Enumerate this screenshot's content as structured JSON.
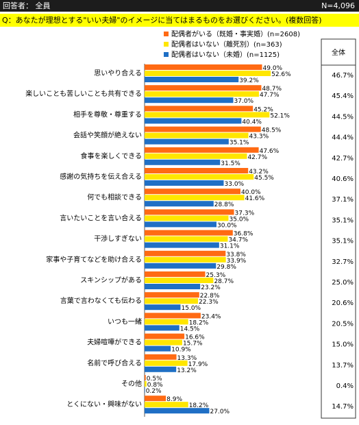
{
  "header": {
    "respondent": "回答者： 全員",
    "n_total": "N=4,096"
  },
  "question": "Q：あなたが理想とする\"いい夫婦\"のイメージに当てはまるものをお選びください。(複数回答)",
  "total_header": "全体",
  "colors": {
    "married": "#ff6a13",
    "divorced": "#ffe600",
    "unmarried": "#1f6fc5",
    "header_bg": "#1c1c1c",
    "question_bg": "#ffff00"
  },
  "chart_data": {
    "type": "bar",
    "orientation": "horizontal",
    "categories": [
      "思いやり合える",
      "楽しいことも苦しいことも共有できる",
      "相手を尊敬・尊重する",
      "会話や笑顔が絶えない",
      "食事を楽しくできる",
      "感謝の気持ちを伝え合える",
      "何でも相談できる",
      "言いたいことを言い合える",
      "干渉しすぎない",
      "家事や子育てなどを助け合える",
      "スキンシップがある",
      "言葉で言わなくても伝わる",
      "いつも一緒",
      "夫婦喧嘩ができる",
      "名前で呼び合える",
      "その他",
      "とくにない・興味がない"
    ],
    "series": [
      {
        "name": "配偶者がいる（既婚・事実婚）(n=2608)",
        "values": [
          49.0,
          48.7,
          45.2,
          48.5,
          47.6,
          43.2,
          40.0,
          37.3,
          36.8,
          33.8,
          25.3,
          22.8,
          23.4,
          16.6,
          13.3,
          0.5,
          8.9
        ]
      },
      {
        "name": "配偶者はいない（離死別）(n=363)",
        "values": [
          52.6,
          47.7,
          52.1,
          43.3,
          42.7,
          45.5,
          41.6,
          35.0,
          34.7,
          33.9,
          28.7,
          22.3,
          18.2,
          15.7,
          17.9,
          0.8,
          18.2
        ]
      },
      {
        "name": "配偶者はいない（未婚）(n=1125)",
        "values": [
          39.2,
          37.0,
          40.4,
          35.1,
          31.5,
          33.0,
          28.8,
          30.0,
          31.1,
          29.8,
          23.2,
          15.0,
          14.5,
          10.9,
          13.2,
          0.2,
          27.0
        ]
      }
    ],
    "total": [
      "46.7%",
      "45.4%",
      "44.5%",
      "44.4%",
      "42.7%",
      "40.6%",
      "37.1%",
      "35.1%",
      "35.1%",
      "32.7%",
      "25.0%",
      "20.6%",
      "20.5%",
      "15.0%",
      "13.7%",
      "0.4%",
      "14.7%"
    ],
    "value_suffix": "%",
    "xlim": [
      0,
      60
    ],
    "grid": false,
    "legend_position": "top"
  }
}
